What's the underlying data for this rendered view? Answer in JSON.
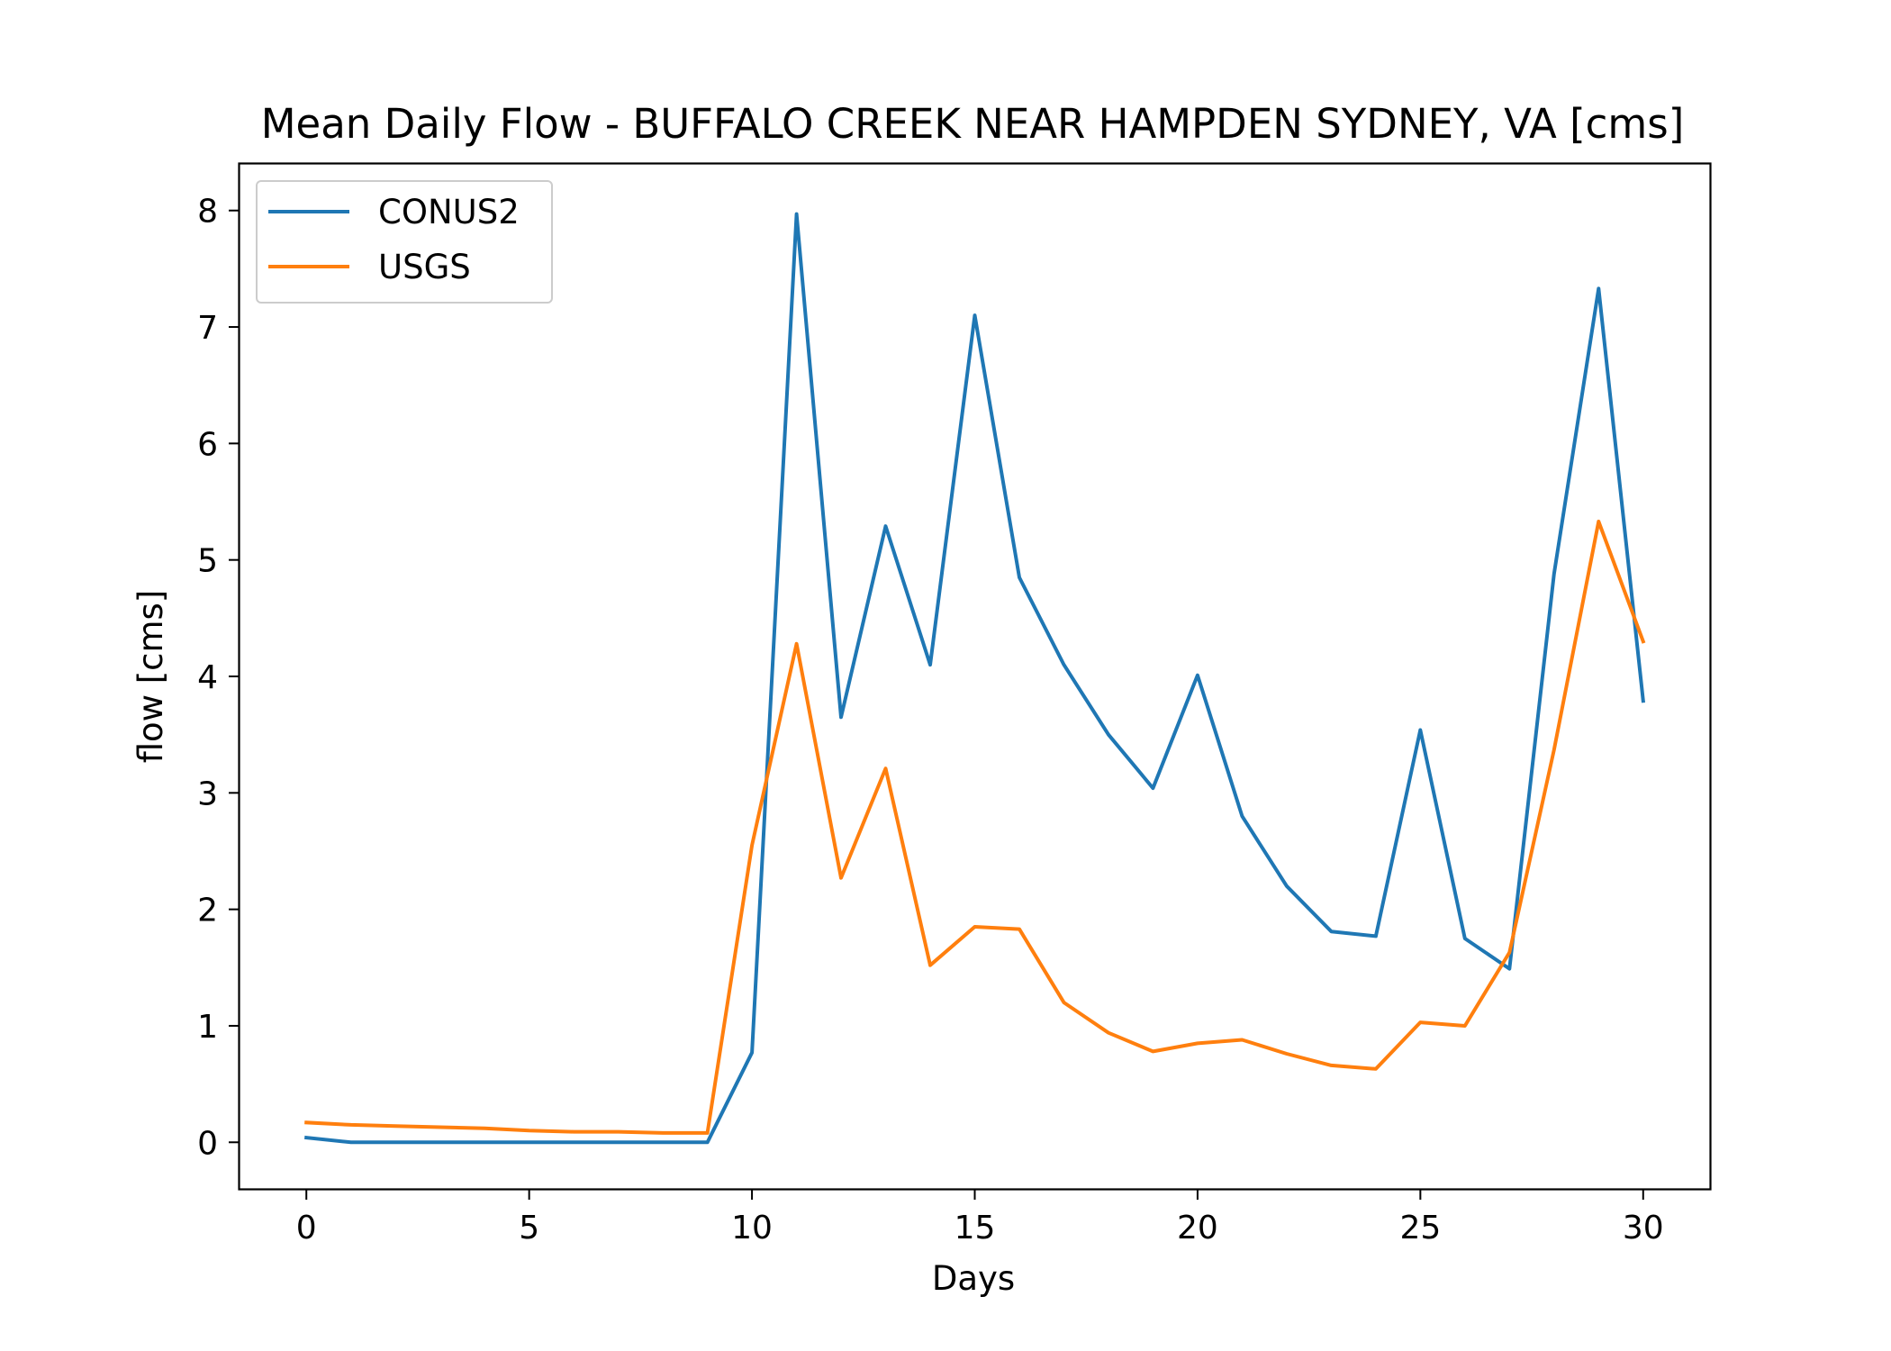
{
  "chart_data": {
    "type": "line",
    "title": "Mean Daily Flow - BUFFALO CREEK NEAR HAMPDEN SYDNEY, VA [cms]",
    "xlabel": "Days",
    "ylabel": "flow [cms]",
    "xlim": [
      -1.5,
      31.5
    ],
    "ylim": [
      -0.4,
      8.4
    ],
    "xticks": [
      "0",
      "5",
      "10",
      "15",
      "20",
      "25",
      "30"
    ],
    "yticks": [
      "0",
      "1",
      "2",
      "3",
      "4",
      "5",
      "6",
      "7",
      "8"
    ],
    "grid": false,
    "legend_position": "upper-left",
    "x": [
      0,
      1,
      2,
      3,
      4,
      5,
      6,
      7,
      8,
      9,
      10,
      11,
      12,
      13,
      14,
      15,
      16,
      17,
      18,
      19,
      20,
      21,
      22,
      23,
      24,
      25,
      26,
      27,
      28,
      29,
      30
    ],
    "series": [
      {
        "name": "CONUS2",
        "color": "#1f77b4",
        "values": [
          0.04,
          0.0,
          0.0,
          0.0,
          0.0,
          0.0,
          0.0,
          0.0,
          0.0,
          0.0,
          0.77,
          7.97,
          3.65,
          5.29,
          4.1,
          7.1,
          4.85,
          4.1,
          3.5,
          3.04,
          4.01,
          2.8,
          2.2,
          1.81,
          1.77,
          3.54,
          1.75,
          1.49,
          4.88,
          7.33,
          3.79
        ]
      },
      {
        "name": "USGS",
        "color": "#ff7f0e",
        "values": [
          0.17,
          0.15,
          0.14,
          0.13,
          0.12,
          0.1,
          0.09,
          0.09,
          0.08,
          0.08,
          2.55,
          4.28,
          2.27,
          3.21,
          1.52,
          1.85,
          1.83,
          1.2,
          0.94,
          0.78,
          0.85,
          0.88,
          0.76,
          0.66,
          0.63,
          1.03,
          1.0,
          1.63,
          3.37,
          5.33,
          4.3
        ]
      }
    ]
  }
}
